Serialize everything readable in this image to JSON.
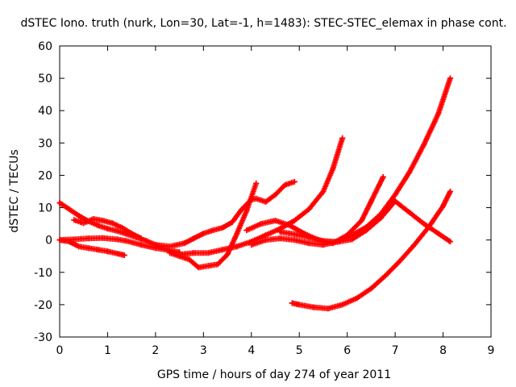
{
  "chart_data": {
    "type": "scatter",
    "title": "dSTEC Iono. truth (nurk, Lon=30, Lat=-1, h=1483): STEC-STEC_elemax in phase cont.",
    "xlabel": "GPS time / hours of day 274 of year 2011",
    "ylabel": "dSTEC  / TECUs",
    "xlim": [
      0,
      9
    ],
    "ylim": [
      -30,
      60
    ],
    "xticks": [
      0,
      1,
      2,
      3,
      4,
      5,
      6,
      7,
      8,
      9
    ],
    "yticks": [
      -30,
      -20,
      -10,
      0,
      10,
      20,
      30,
      40,
      50,
      60
    ],
    "xtick_labels": [
      "0",
      "1",
      "2",
      "3",
      "4",
      "5",
      "6",
      "7",
      "8",
      "9"
    ],
    "ytick_labels": [
      "-30",
      "-20",
      "-10",
      "0",
      "10",
      "20",
      "30",
      "40",
      "50",
      "60"
    ],
    "grid": false,
    "marker": "plus",
    "series_color": "#ff0000",
    "series": [
      {
        "x": [
          0.0,
          0.2,
          0.4,
          0.6,
          0.8,
          1.0,
          1.2,
          1.4,
          1.6,
          1.8,
          2.0,
          2.2,
          2.4
        ],
        "y": [
          11.5,
          9.5,
          7.5,
          5.8,
          4.5,
          3.5,
          2.8,
          1.8,
          0.8,
          -0.2,
          -1.5,
          -2.8,
          -3.8
        ]
      },
      {
        "x": [
          0.3,
          0.5,
          0.7,
          0.9,
          1.1,
          1.3,
          1.5,
          1.7
        ],
        "y": [
          6.2,
          5.2,
          6.5,
          6.0,
          5.2,
          3.8,
          2.0,
          0.5
        ]
      },
      {
        "x": [
          0.0,
          0.2,
          0.4,
          0.6,
          0.8,
          1.0,
          1.2,
          1.35
        ],
        "y": [
          0.0,
          -0.5,
          -2.0,
          -2.5,
          -3.0,
          -3.5,
          -4.2,
          -4.7
        ]
      },
      {
        "x": [
          0.0,
          0.3,
          0.6,
          0.9,
          1.2,
          1.4,
          1.7,
          2.0,
          2.3,
          2.5
        ],
        "y": [
          0.0,
          0.2,
          0.5,
          0.6,
          0.2,
          -0.3,
          -1.5,
          -2.5,
          -3.2,
          -3.8
        ]
      },
      {
        "x": [
          2.3,
          2.5,
          2.7,
          2.9,
          3.1,
          3.3,
          3.5,
          3.7,
          3.9,
          4.1
        ],
        "y": [
          -4.0,
          -5.0,
          -6.0,
          -8.5,
          -8.0,
          -7.5,
          -4.5,
          2.0,
          9.0,
          17.5
        ]
      },
      {
        "x": [
          2.0,
          2.3,
          2.6,
          2.8,
          3.0,
          3.2,
          3.4,
          3.6,
          3.8,
          4.0,
          4.1,
          4.3,
          4.5,
          4.7,
          4.9
        ],
        "y": [
          -1.5,
          -2.0,
          -1.0,
          0.5,
          2.0,
          3.0,
          3.8,
          5.5,
          9.5,
          12.5,
          12.8,
          11.8,
          14.0,
          17.0,
          18.0
        ]
      },
      {
        "x": [
          2.5,
          2.8,
          3.1,
          3.4,
          3.7,
          4.0,
          4.3,
          4.6,
          4.9,
          5.2,
          5.5,
          5.7,
          5.9
        ],
        "y": [
          -4.5,
          -4.0,
          -4.0,
          -3.0,
          -2.0,
          -0.5,
          1.5,
          3.5,
          6.0,
          9.5,
          15.0,
          22.0,
          31.5
        ]
      },
      {
        "x": [
          3.9,
          4.2,
          4.5,
          4.8,
          5.1,
          5.4,
          5.7,
          6.0,
          6.3,
          6.5,
          6.75
        ],
        "y": [
          3.0,
          5.0,
          6.0,
          4.5,
          2.0,
          0.0,
          -1.0,
          1.5,
          6.0,
          12.0,
          19.5
        ]
      },
      {
        "x": [
          4.0,
          4.3,
          4.6,
          4.9,
          5.2,
          5.5,
          5.8,
          6.1,
          6.4,
          6.7,
          7.0,
          7.3,
          7.6,
          7.9,
          8.15
        ],
        "y": [
          -1.5,
          0.0,
          0.5,
          0.0,
          -1.0,
          -1.5,
          -0.5,
          1.5,
          4.0,
          8.0,
          14.0,
          21.0,
          29.5,
          39.0,
          50.0
        ]
      },
      {
        "x": [
          4.6,
          4.9,
          5.2,
          5.5,
          5.8,
          6.1,
          6.4,
          6.7,
          7.0,
          7.3,
          7.6,
          7.9,
          8.15
        ],
        "y": [
          2.5,
          1.8,
          0.8,
          -0.3,
          -0.6,
          0.2,
          3.0,
          6.8,
          12.0,
          8.5,
          5.0,
          2.0,
          -0.5
        ]
      },
      {
        "x": [
          4.85,
          5.0,
          5.3,
          5.6,
          5.9,
          6.2,
          6.5,
          6.8,
          7.1,
          7.4,
          7.7,
          8.0,
          8.15
        ],
        "y": [
          -19.5,
          -20.0,
          -20.8,
          -21.2,
          -20.0,
          -18.0,
          -15.0,
          -11.0,
          -6.5,
          -1.5,
          4.0,
          10.5,
          15.0
        ]
      }
    ]
  }
}
